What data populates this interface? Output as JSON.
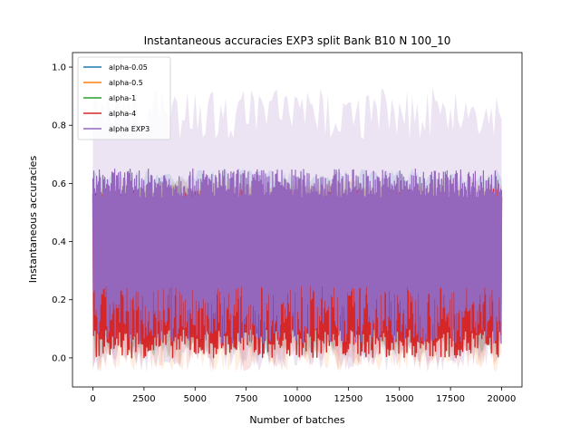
{
  "chart_data": {
    "type": "line",
    "title": "Instantaneous accuracies EXP3 split Bank B10 N 100_10",
    "xlabel": "Number of batches",
    "ylabel": "Instantaneous accuracies",
    "xlim": [
      -1000,
      21000
    ],
    "ylim": [
      -0.1,
      1.05
    ],
    "xticks": [
      0,
      2500,
      5000,
      7500,
      10000,
      12500,
      15000,
      17500,
      20000
    ],
    "yticks": [
      0.0,
      0.2,
      0.4,
      0.6,
      0.8,
      1.0
    ],
    "xtick_labels": [
      "0",
      "2500",
      "5000",
      "7500",
      "10000",
      "12500",
      "15000",
      "17500",
      "20000"
    ],
    "ytick_labels": [
      "0.0",
      "0.2",
      "0.4",
      "0.6",
      "0.8",
      "1.0"
    ],
    "grid": false,
    "legend_position": "top-left",
    "series": [
      {
        "name": "alpha-0.05",
        "color": "#1f77b4",
        "x": [
          0,
          100,
          200,
          300
        ],
        "y": [
          0.45,
          0.47,
          0.46,
          0.47
        ],
        "band": [
          0.0,
          0.65
        ]
      },
      {
        "name": "alpha-0.5",
        "color": "#ff7f0e",
        "x": [
          0,
          200,
          400,
          500
        ],
        "y": [
          0.44,
          0.48,
          0.5,
          0.52
        ],
        "band": [
          -0.05,
          0.62
        ]
      },
      {
        "name": "alpha-1",
        "color": "#2ca02c",
        "x": [
          0,
          100,
          200,
          300
        ],
        "y": [
          0.46,
          0.45,
          0.46,
          0.45
        ],
        "band": [
          0.0,
          0.6
        ]
      },
      {
        "name": "alpha-4",
        "color": "#d62728",
        "x": [
          0,
          2500,
          5000,
          7500
        ],
        "y": [
          0.0,
          0.05,
          0.08,
          0.1
        ],
        "band": [
          -0.05,
          0.6
        ]
      },
      {
        "name": "alpha EXP3",
        "color": "#9467bd",
        "x": [
          0,
          5000,
          10000,
          15000,
          20000
        ],
        "y": [
          0.35,
          0.36,
          0.35,
          0.36,
          0.35
        ],
        "band": [
          -0.05,
          0.93
        ]
      }
    ]
  }
}
